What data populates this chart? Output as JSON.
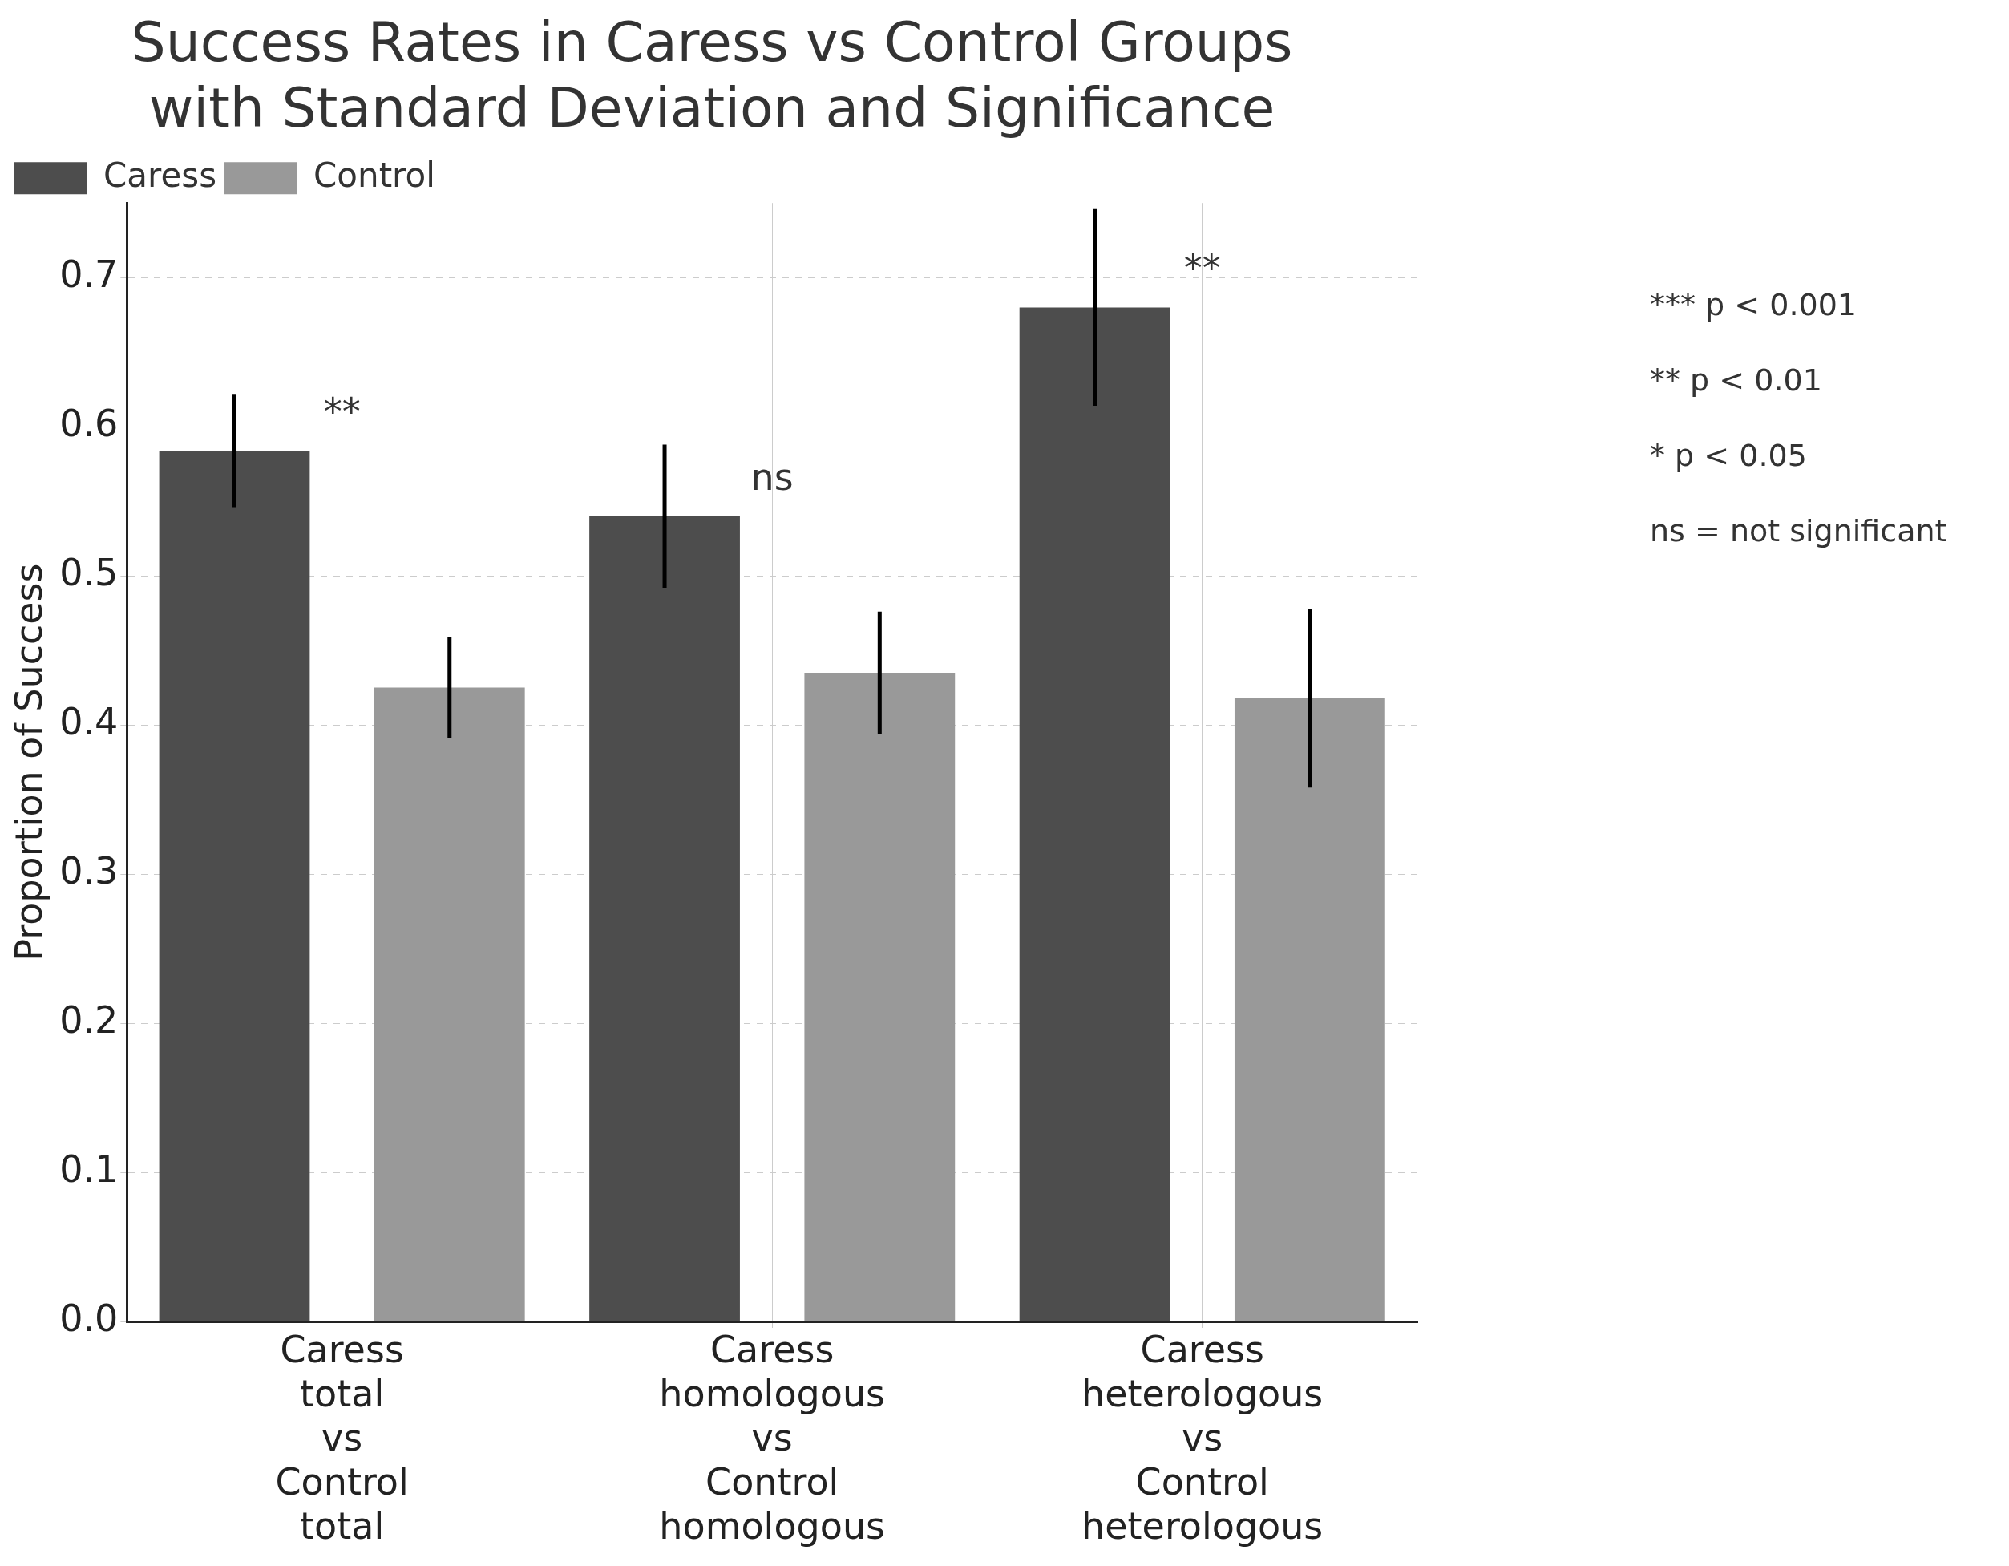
{
  "chart_data": {
    "type": "bar",
    "title": "Success Rates in Caress vs Control Groups\nwith Standard Deviation and Significance",
    "ylabel": "Proportion of Success",
    "categories": [
      "Caress total vs Control total",
      "Caress homologous vs Control homologous",
      "Caress heterologous vs Control heterologous"
    ],
    "series": [
      {
        "name": "Caress",
        "color": "#4d4d4d",
        "values": [
          0.584,
          0.54,
          0.68
        ],
        "errors": [
          0.038,
          0.048,
          0.066
        ]
      },
      {
        "name": "Control",
        "color": "#999999",
        "values": [
          0.425,
          0.435,
          0.418
        ],
        "errors": [
          0.034,
          0.041,
          0.06
        ]
      }
    ],
    "ylim": [
      0,
      0.75
    ],
    "yticks": [
      {
        "value": 0,
        "label": "0.0"
      },
      0.1,
      0.2,
      0.3,
      0.4,
      0.5,
      0.6,
      0.7
    ],
    "grid": true,
    "legend": "top left",
    "annotations": [
      "**",
      "ns",
      "**",
      "*** p < 0.001",
      "** p < 0.01",
      "* p < 0.05",
      "ns = not significant"
    ]
  }
}
